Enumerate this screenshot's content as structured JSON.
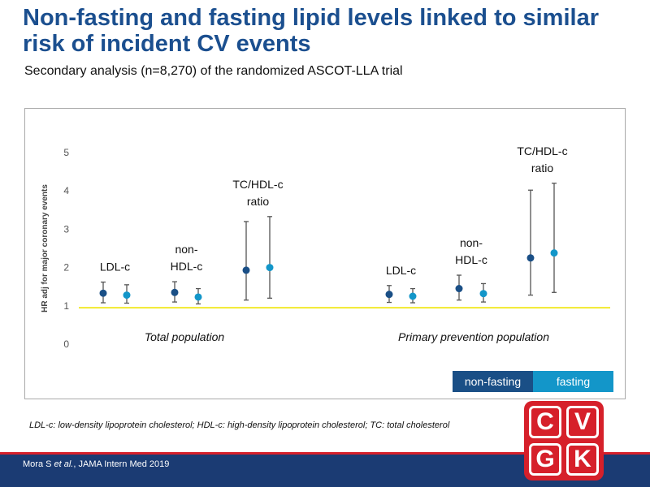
{
  "title": "Non-fasting and fasting lipid levels linked to similar risk of incident CV events",
  "subtitle": "Secondary analysis (n=8,270) of the randomized ASCOT-LLA trial",
  "footnote_parts": [
    "LDL-c",
    ": low-density lipoprotein cholesterol; ",
    "HDL-c",
    ": high-density lipoprotein cholesterol; ",
    "TC",
    ": total cholesterol"
  ],
  "citation": {
    "authors": "Mora S ",
    "etal": "et al.",
    "rest": ", JAMA Intern Med 2019"
  },
  "logo": {
    "letters": [
      "C",
      "V",
      "G",
      "K"
    ]
  },
  "colors": {
    "non_fasting": "#1a4f86",
    "fasting": "#1396c9",
    "reference_line": "#f2ea2d",
    "title": "#1b4f8f"
  },
  "legend": {
    "items": [
      "non-fasting",
      "fasting"
    ]
  },
  "chart_data": {
    "type": "scatter",
    "ylabel": "HR adj for major coronary events",
    "ylim": [
      0,
      5
    ],
    "yticks": [
      0,
      1,
      2,
      3,
      4,
      5
    ],
    "reference_line": 0.95,
    "groups": [
      {
        "label": "Total population",
        "biomarkers": [
          {
            "label_lines": [
              "LDL-c"
            ],
            "non_fasting": {
              "hr": 1.33,
              "lo": 1.08,
              "hi": 1.62
            },
            "fasting": {
              "hr": 1.28,
              "lo": 1.07,
              "hi": 1.55
            }
          },
          {
            "label_lines": [
              "non-",
              "HDL-c"
            ],
            "non_fasting": {
              "hr": 1.35,
              "lo": 1.1,
              "hi": 1.63
            },
            "fasting": {
              "hr": 1.23,
              "lo": 1.05,
              "hi": 1.45
            }
          },
          {
            "label_lines": [
              "TC/HDL-c",
              "ratio"
            ],
            "non_fasting": {
              "hr": 1.93,
              "lo": 1.15,
              "hi": 3.2
            },
            "fasting": {
              "hr": 2.0,
              "lo": 1.2,
              "hi": 3.33
            }
          }
        ]
      },
      {
        "label": "Primary prevention population",
        "biomarkers": [
          {
            "label_lines": [
              "LDL-c"
            ],
            "non_fasting": {
              "hr": 1.3,
              "lo": 1.09,
              "hi": 1.53
            },
            "fasting": {
              "hr": 1.25,
              "lo": 1.08,
              "hi": 1.45
            }
          },
          {
            "label_lines": [
              "non-",
              "HDL-c"
            ],
            "non_fasting": {
              "hr": 1.45,
              "lo": 1.15,
              "hi": 1.8
            },
            "fasting": {
              "hr": 1.32,
              "lo": 1.1,
              "hi": 1.58
            }
          },
          {
            "label_lines": [
              "TC/HDL-c",
              "ratio"
            ],
            "non_fasting": {
              "hr": 2.25,
              "lo": 1.28,
              "hi": 4.02
            },
            "fasting": {
              "hr": 2.38,
              "lo": 1.35,
              "hi": 4.2
            }
          }
        ]
      }
    ]
  }
}
